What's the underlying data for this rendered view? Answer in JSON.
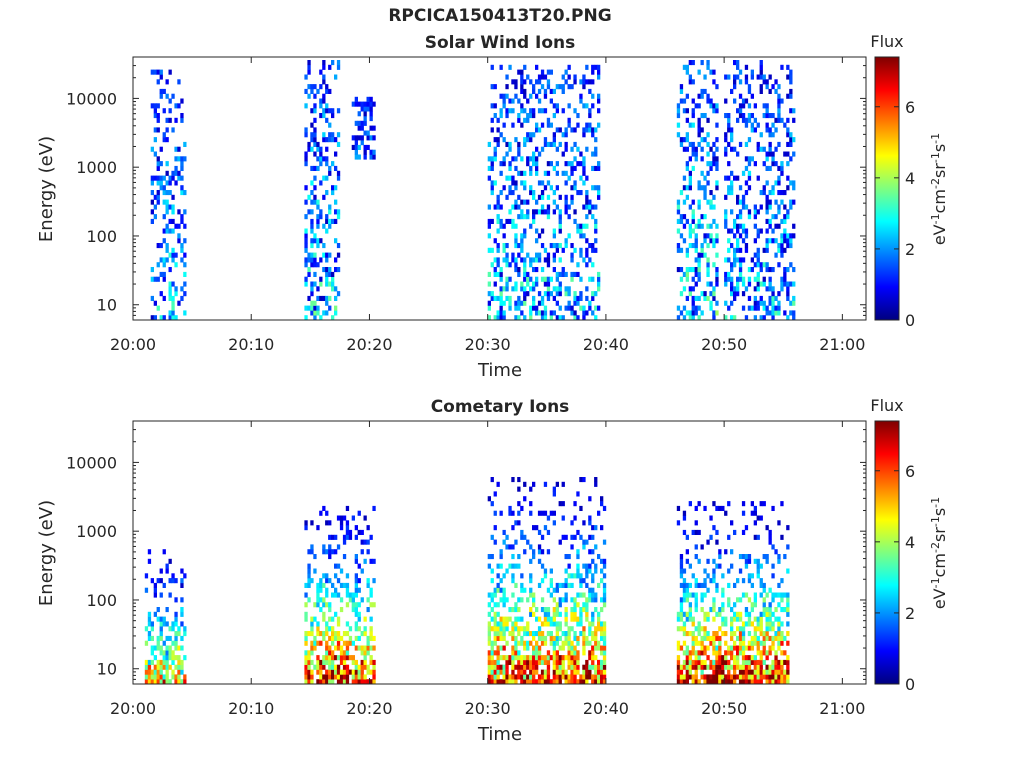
{
  "figure": {
    "title": "RPCICA150413T20.PNG"
  },
  "colorbar": {
    "label": "Flux",
    "unit_base": "eV",
    "unit_sup1": "-1",
    "unit_cm": "cm",
    "unit_sup2": "-2",
    "unit_sr": "sr",
    "unit_sup3": "-1",
    "unit_s": "s",
    "unit_sup4": "-1",
    "range": [
      0,
      7.4
    ],
    "ticks": [
      "0",
      "2",
      "4",
      "6"
    ],
    "colormap": [
      "#00007f",
      "#0000ff",
      "#007fff",
      "#00ffff",
      "#7fff7f",
      "#ffff00",
      "#ff7f00",
      "#ff0000",
      "#7f0000"
    ]
  },
  "chart_data": [
    {
      "type": "heatmap",
      "title": "Solar Wind Ions",
      "xlabel": "Time",
      "ylabel": "Energy (eV)",
      "xticks": [
        "20:00",
        "20:10",
        "20:20",
        "20:30",
        "20:40",
        "20:50",
        "21:00"
      ],
      "xlim": [
        "20:00",
        "21:02"
      ],
      "ylim": [
        6,
        40000
      ],
      "yscale": "log",
      "yticks": [
        "10",
        "100",
        "1000",
        "10000"
      ],
      "bursts": [
        {
          "t_start": "20:01:30",
          "t_end": "20:04:30",
          "e_low": 6,
          "e_high": 25000,
          "flux_peak": 2.5
        },
        {
          "t_start": "20:14:30",
          "t_end": "20:17:30",
          "e_low": 6,
          "e_high": 32000,
          "flux_peak": 2.8
        },
        {
          "t_start": "20:18:30",
          "t_end": "20:20:30",
          "e_low": 1300,
          "e_high": 10000,
          "flux_peak": 1.8
        },
        {
          "t_start": "20:30:00",
          "t_end": "20:39:30",
          "e_low": 6,
          "e_high": 27000,
          "flux_peak": 2.8
        },
        {
          "t_start": "20:46:00",
          "t_end": "20:49:30",
          "e_low": 6,
          "e_high": 38000,
          "flux_peak": 3.0
        },
        {
          "t_start": "20:50:00",
          "t_end": "20:56:00",
          "e_low": 6,
          "e_high": 38000,
          "flux_peak": 2.6
        }
      ]
    },
    {
      "type": "heatmap",
      "title": "Cometary Ions",
      "xlabel": "Time",
      "ylabel": "Energy (eV)",
      "xticks": [
        "20:00",
        "20:10",
        "20:20",
        "20:30",
        "20:40",
        "20:50",
        "21:00"
      ],
      "xlim": [
        "20:00",
        "21:02"
      ],
      "ylim": [
        6,
        40000
      ],
      "yscale": "log",
      "yticks": [
        "10",
        "100",
        "1000",
        "10000"
      ],
      "bursts": [
        {
          "t_start": "20:01:00",
          "t_end": "20:04:30",
          "e_low": 6,
          "e_high": 500,
          "flux_peak": 5.0
        },
        {
          "t_start": "20:14:30",
          "t_end": "20:20:30",
          "e_low": 6,
          "e_high": 2200,
          "flux_peak": 6.8
        },
        {
          "t_start": "20:30:00",
          "t_end": "20:40:00",
          "e_low": 6,
          "e_high": 5300,
          "flux_peak": 6.5
        },
        {
          "t_start": "20:46:00",
          "t_end": "20:55:30",
          "e_low": 6,
          "e_high": 2400,
          "flux_peak": 6.8
        }
      ]
    }
  ]
}
